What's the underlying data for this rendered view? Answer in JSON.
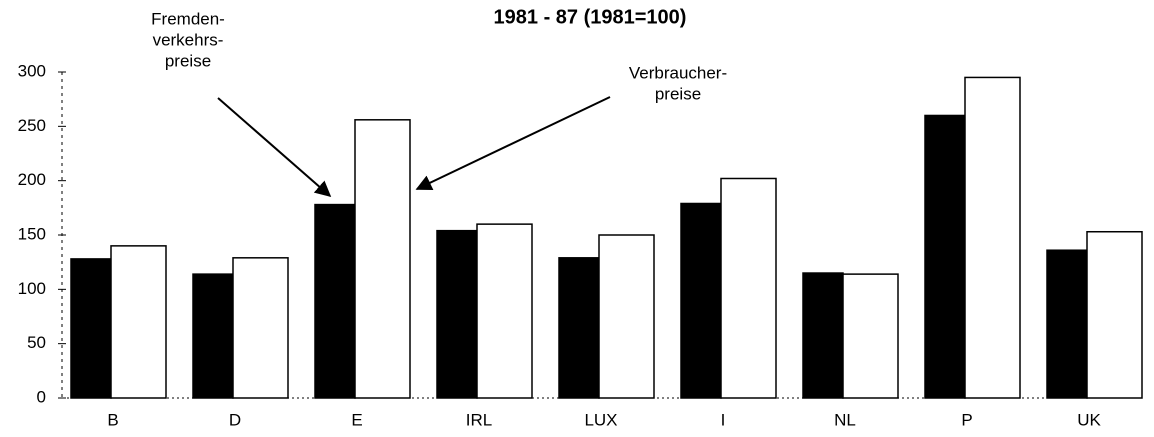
{
  "chart_data": {
    "type": "bar",
    "title": "1981 - 87 (1981=100)",
    "categories": [
      "B",
      "D",
      "E",
      "IRL",
      "LUX",
      "I",
      "NL",
      "P",
      "UK"
    ],
    "series": [
      {
        "color": "#000000",
        "values": [
          128,
          114,
          178,
          154,
          129,
          179,
          115,
          260,
          136
        ]
      },
      {
        "color": "#ffffff",
        "values": [
          140,
          129,
          256,
          160,
          150,
          202,
          114,
          295,
          153
        ]
      }
    ],
    "annotations": [
      {
        "lines": [
          "Fremden-",
          "verkehrs-",
          "preise"
        ]
      },
      {
        "lines": [
          "Verbraucher-",
          "preise"
        ]
      }
    ],
    "ylim": [
      0,
      300
    ],
    "yticks": [
      0,
      50,
      100,
      150,
      200,
      250,
      300
    ],
    "grid": false
  }
}
